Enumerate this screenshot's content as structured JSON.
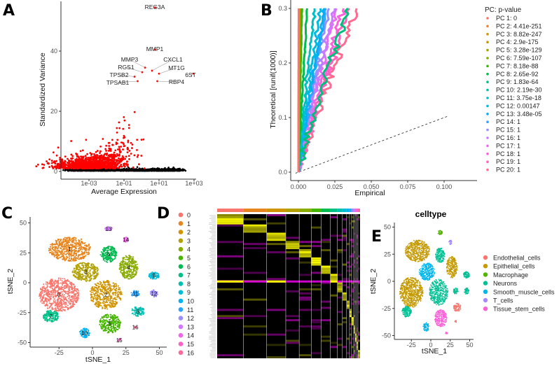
{
  "panels": {
    "a": "A",
    "b": "B",
    "c": "C",
    "d": "D",
    "e": "E"
  },
  "chart_data": [
    {
      "id": "A",
      "type": "scatter",
      "xlabel": "Average Expression",
      "ylabel": "Standardized Variance",
      "x_scale": "log10",
      "x_ticks": [
        "1e-03",
        "1e-01",
        "1e+01",
        "1e+03"
      ],
      "y_ticks": [
        0,
        20,
        40
      ],
      "ylim": [
        0,
        55
      ],
      "point_colors": {
        "variable": "#ff0000",
        "other": "#000000"
      },
      "labeled_genes": [
        {
          "label": "REG3A",
          "x": 6,
          "y": 54.5
        },
        {
          "label": "MMP1",
          "x": 6,
          "y": 40.5
        },
        {
          "label": "MMP3",
          "x": 1.6,
          "y": 34.5
        },
        {
          "label": "RGS1",
          "x": 1.1,
          "y": 33
        },
        {
          "label": "CXCL1",
          "x": 4,
          "y": 33.5
        },
        {
          "label": "MT1G",
          "x": 10,
          "y": 32.5
        },
        {
          "label": "6ST",
          "x": 900,
          "y": 32.5
        },
        {
          "label": "TPSB2",
          "x": 0.4,
          "y": 31.5
        },
        {
          "label": "TPSAB1",
          "x": 0.6,
          "y": 30
        },
        {
          "label": "RBP4",
          "x": 8,
          "y": 30
        }
      ]
    },
    {
      "id": "B",
      "type": "line",
      "xlabel": "Empirical",
      "ylabel": "Theoretical [runif(1000)]",
      "x_ticks": [
        "0.000",
        "0.025",
        "0.050",
        "0.075",
        "0.100"
      ],
      "y_ticks": [
        "0.0",
        "0.1",
        "0.2",
        "0.3"
      ],
      "xlim": [
        -0.002,
        0.102
      ],
      "ylim": [
        -0.003,
        0.303
      ],
      "reference_line": {
        "slope": 1,
        "intercept": 0,
        "style": "dashed"
      },
      "legend_title": "PC: p-value",
      "legend_position": "right",
      "series": [
        {
          "name": "PC 1: 0",
          "color": "#F8766D",
          "empirical_at_0.3": 0.0002
        },
        {
          "name": "PC 2: 4.41e-251",
          "color": "#EA8331",
          "empirical_at_0.3": 0.0003
        },
        {
          "name": "PC 3: 8.82e-247",
          "color": "#D89000",
          "empirical_at_0.3": 0.0004
        },
        {
          "name": "PC 4: 2.9e-175",
          "color": "#C09B00",
          "empirical_at_0.3": 0.0005
        },
        {
          "name": "PC 5: 3.28e-129",
          "color": "#A3A500",
          "empirical_at_0.3": 0.0007
        },
        {
          "name": "PC 6: 7.59e-107",
          "color": "#7CAE00",
          "empirical_at_0.3": 0.001
        },
        {
          "name": "PC 7: 8.18e-88",
          "color": "#39B600",
          "empirical_at_0.3": 0.0025
        },
        {
          "name": "PC 8: 2.65e-92",
          "color": "#00BB4E",
          "empirical_at_0.3": 0.006
        },
        {
          "name": "PC 9: 1.83e-64",
          "color": "#00BF7D",
          "empirical_at_0.3": 0.034
        },
        {
          "name": "PC 10: 2.19e-30",
          "color": "#00C1A3",
          "empirical_at_0.3": 0.002
        },
        {
          "name": "PC 11: 3.75e-18",
          "color": "#00BFC4",
          "empirical_at_0.3": 0.011
        },
        {
          "name": "PC 12: 0.00147",
          "color": "#00BAE0",
          "empirical_at_0.3": 0.015
        },
        {
          "name": "PC 13: 3.48e-05",
          "color": "#00B0F6",
          "empirical_at_0.3": 0.018
        },
        {
          "name": "PC 14: 1",
          "color": "#35A2FF",
          "empirical_at_0.3": 0.019
        },
        {
          "name": "PC 15: 1",
          "color": "#9590FF",
          "empirical_at_0.3": 0.021
        },
        {
          "name": "PC 16: 1",
          "color": "#C77CFF",
          "empirical_at_0.3": 0.025
        },
        {
          "name": "PC 17: 1",
          "color": "#E76BF3",
          "empirical_at_0.3": 0.026
        },
        {
          "name": "PC 18: 1",
          "color": "#FA62DB",
          "empirical_at_0.3": 0.031
        },
        {
          "name": "PC 19: 1",
          "color": "#FF62BC",
          "empirical_at_0.3": 0.035
        },
        {
          "name": "PC 20: 1",
          "color": "#FF6C91",
          "empirical_at_0.3": 0.04
        }
      ]
    },
    {
      "id": "C",
      "type": "scatter",
      "xlabel": "tSNE_1",
      "ylabel": "tSNE_2",
      "x_ticks": [
        -25,
        0,
        25,
        50
      ],
      "y_ticks": [
        -50,
        -25,
        0,
        25,
        50
      ],
      "xlim": [
        -45,
        55
      ],
      "ylim": [
        -53,
        55
      ],
      "legend_position": "right",
      "clusters": [
        {
          "name": "0",
          "color": "#F8766D",
          "center": [
            -25,
            -10
          ]
        },
        {
          "name": "1",
          "color": "#E7851E",
          "center": [
            -17,
            28
          ]
        },
        {
          "name": "2",
          "color": "#D09400",
          "center": [
            10,
            -10
          ]
        },
        {
          "name": "3",
          "color": "#B2A100",
          "center": [
            -5,
            9
          ]
        },
        {
          "name": "4",
          "color": "#89AC00",
          "center": [
            27,
            13
          ]
        },
        {
          "name": "5",
          "color": "#45B500",
          "center": [
            13,
            -34
          ]
        },
        {
          "name": "6",
          "color": "#00BC51",
          "center": [
            12,
            24
          ]
        },
        {
          "name": "7",
          "color": "#00C087",
          "center": [
            -31,
            -28
          ]
        },
        {
          "name": "8",
          "color": "#00C0B2",
          "center": [
            34,
            -24
          ]
        },
        {
          "name": "9",
          "color": "#00BCD6",
          "center": [
            46,
            6
          ]
        },
        {
          "name": "10",
          "color": "#00B3F2",
          "center": [
            -6,
            -42
          ]
        },
        {
          "name": "11",
          "color": "#29A3FF",
          "center": [
            32,
            -9
          ]
        },
        {
          "name": "12",
          "color": "#9C8DFF",
          "center": [
            46,
            -9
          ]
        },
        {
          "name": "13",
          "color": "#D277FF",
          "center": [
            12,
            45
          ]
        },
        {
          "name": "14",
          "color": "#F166E8",
          "center": [
            25,
            36
          ]
        },
        {
          "name": "15",
          "color": "#FF61C7",
          "center": [
            20,
            -48
          ]
        },
        {
          "name": "16",
          "color": "#FF689E",
          "center": [
            32,
            -37
          ]
        }
      ]
    },
    {
      "id": "D",
      "type": "heatmap",
      "cluster_sizes": [
        37,
        33,
        27,
        19,
        17,
        14,
        13,
        10,
        7,
        6,
        4,
        3,
        3,
        2,
        2,
        2,
        3
      ],
      "colors": {
        "low": "#FF00FF",
        "mid": "#000000",
        "high": "#FFFF00"
      }
    },
    {
      "id": "E",
      "type": "scatter",
      "title": "celltype",
      "xlabel": "tSNE_1",
      "ylabel": "tSNE_2",
      "x_ticks": [
        -25,
        0,
        25,
        50
      ],
      "y_ticks": [
        -50,
        -25,
        0,
        25,
        50
      ],
      "legend_position": "right",
      "celltypes": [
        {
          "name": "Endothelial_cells",
          "color": "#F8766D"
        },
        {
          "name": "Epithelial_cells",
          "color": "#C49A00"
        },
        {
          "name": "Macrophage",
          "color": "#53B400"
        },
        {
          "name": "Neurons",
          "color": "#00C094"
        },
        {
          "name": "Smooth_muscle_cells",
          "color": "#00B6EB"
        },
        {
          "name": "T_cells",
          "color": "#A58AFF"
        },
        {
          "name": "Tissue_stem_cells",
          "color": "#FB61D7"
        }
      ],
      "cluster_to_celltype": [
        "Epithelial_cells",
        "Epithelial_cells",
        "Neurons",
        "Smooth_muscle_cells",
        "Epithelial_cells",
        "Tissue_stem_cells",
        "Neurons",
        "Neurons",
        "Endothelial_cells",
        "Neurons",
        "Smooth_muscle_cells",
        "Neurons",
        "Neurons",
        "Macrophage",
        "T_cells",
        "Tissue_stem_cells",
        "Endothelial_cells"
      ]
    }
  ]
}
